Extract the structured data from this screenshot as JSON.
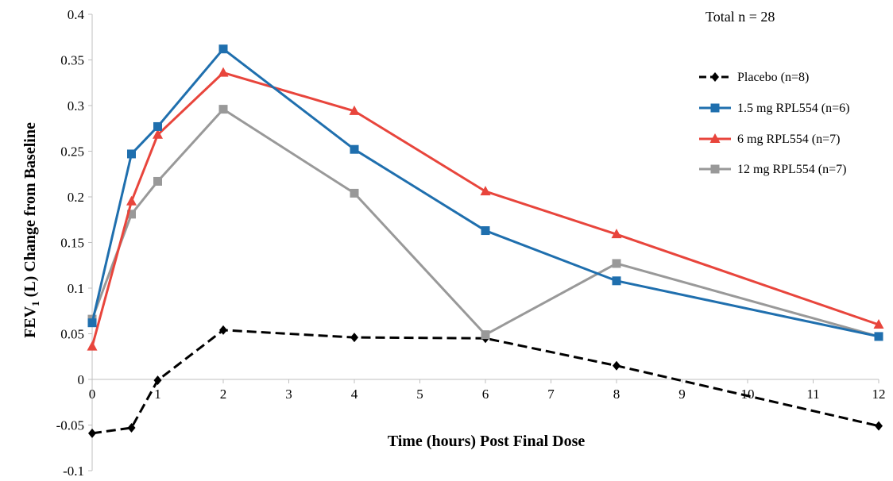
{
  "chart_data": {
    "type": "line",
    "title": "",
    "xlabel": "Time (hours) Post Final Dose",
    "ylabel_main": "FEV",
    "ylabel_sub": "1",
    "ylabel_rest": " (L) Change from Baseline",
    "annotation": "Total n = 28",
    "xlim": [
      0,
      12
    ],
    "ylim": [
      -0.1,
      0.4
    ],
    "x_ticks": [
      "0",
      "1",
      "2",
      "3",
      "4",
      "5",
      "6",
      "7",
      "8",
      "9",
      "10",
      "11",
      "12"
    ],
    "y_ticks": [
      "-0.1",
      "-0.05",
      "0",
      "0.05",
      "0.1",
      "0.15",
      "0.2",
      "0.25",
      "0.3",
      "0.35",
      "0.4"
    ],
    "grid": false,
    "legend_position": "right",
    "series": [
      {
        "name": "Placebo (n=8)",
        "color": "#000000",
        "marker": "diamond",
        "dashed": true,
        "x": [
          0,
          0.6,
          1,
          2,
          4,
          6,
          8,
          12
        ],
        "y": [
          -0.059,
          -0.053,
          -0.001,
          0.054,
          0.046,
          0.045,
          0.015,
          -0.051
        ]
      },
      {
        "name": "1.5 mg RPL554 (n=6)",
        "color": "#1F6FAE",
        "marker": "square",
        "dashed": false,
        "x": [
          0,
          0.6,
          1,
          2,
          4,
          6,
          8,
          12
        ],
        "y": [
          0.062,
          0.247,
          0.277,
          0.362,
          0.252,
          0.163,
          0.108,
          0.047
        ]
      },
      {
        "name": "6 mg RPL554 (n=7)",
        "color": "#E8453C",
        "marker": "triangle",
        "dashed": false,
        "x": [
          0,
          0.6,
          1,
          2,
          4,
          6,
          8,
          12
        ],
        "y": [
          0.036,
          0.195,
          0.268,
          0.336,
          0.294,
          0.206,
          0.159,
          0.06
        ]
      },
      {
        "name": "12 mg RPL554 (n=7)",
        "color": "#999999",
        "marker": "square",
        "dashed": false,
        "x": [
          0,
          0.6,
          1,
          2,
          4,
          6,
          8,
          12
        ],
        "y": [
          0.066,
          0.181,
          0.217,
          0.296,
          0.204,
          0.049,
          0.127,
          0.047
        ]
      }
    ]
  }
}
